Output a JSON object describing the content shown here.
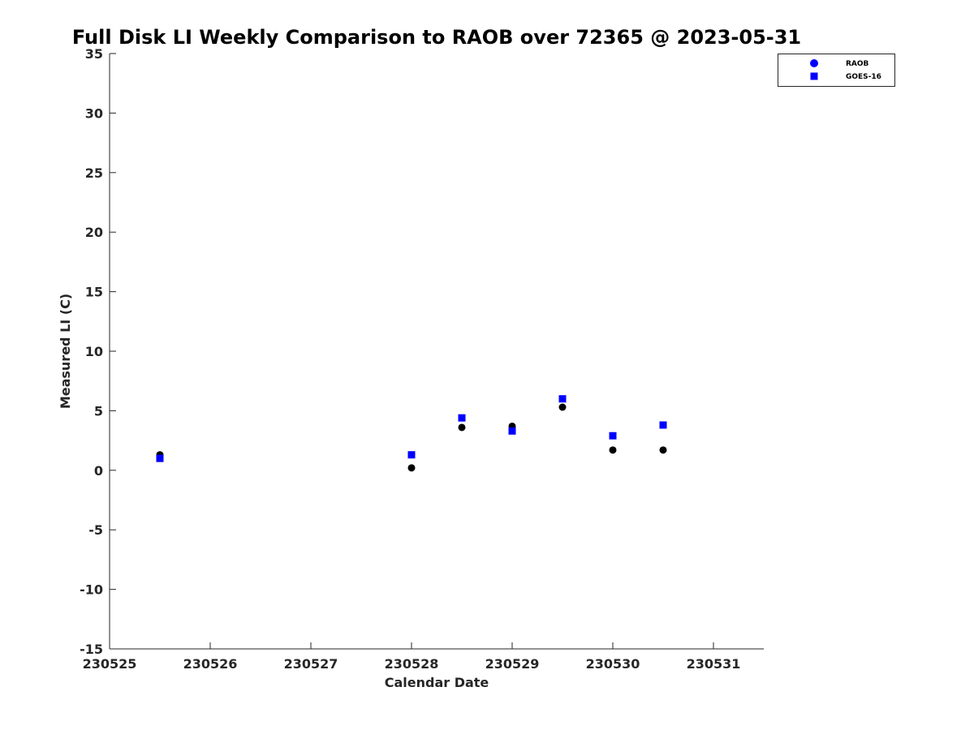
{
  "chart_data": {
    "type": "scatter",
    "title": "Full Disk LI Weekly Comparison to RAOB over 72365 @ 2023-05-31",
    "xlabel": "Calendar Date",
    "ylabel": "Measured LI (C)",
    "xlim": [
      230525,
      230531.5
    ],
    "ylim": [
      -15,
      35
    ],
    "xticks": [
      230525,
      230526,
      230527,
      230528,
      230529,
      230530,
      230531
    ],
    "xtick_labels": [
      "230525",
      "230526",
      "230527",
      "230528",
      "230529",
      "230530",
      "230531"
    ],
    "yticks": [
      -15,
      -10,
      -5,
      0,
      5,
      10,
      15,
      20,
      25,
      30,
      35
    ],
    "ytick_labels": [
      "-15",
      "-10",
      "-5",
      "0",
      "5",
      "10",
      "15",
      "20",
      "25",
      "30",
      "35"
    ],
    "grid": false,
    "legend_position": "top-right",
    "series": [
      {
        "name": "RAOB",
        "marker": "circle",
        "color": "#000000",
        "legend_color": "#0000ff",
        "x": [
          230525.5,
          230528,
          230528.5,
          230529,
          230529.5,
          230530,
          230530.5
        ],
        "y": [
          1.3,
          0.2,
          3.6,
          3.7,
          5.3,
          1.7,
          1.7
        ]
      },
      {
        "name": "GOES-16",
        "marker": "square",
        "color": "#0000ff",
        "legend_color": "#0000ff",
        "x": [
          230525.5,
          230528,
          230528.5,
          230529,
          230529.5,
          230530,
          230530.5
        ],
        "y": [
          1.0,
          1.3,
          4.4,
          3.3,
          6.0,
          2.9,
          3.8
        ]
      }
    ]
  }
}
